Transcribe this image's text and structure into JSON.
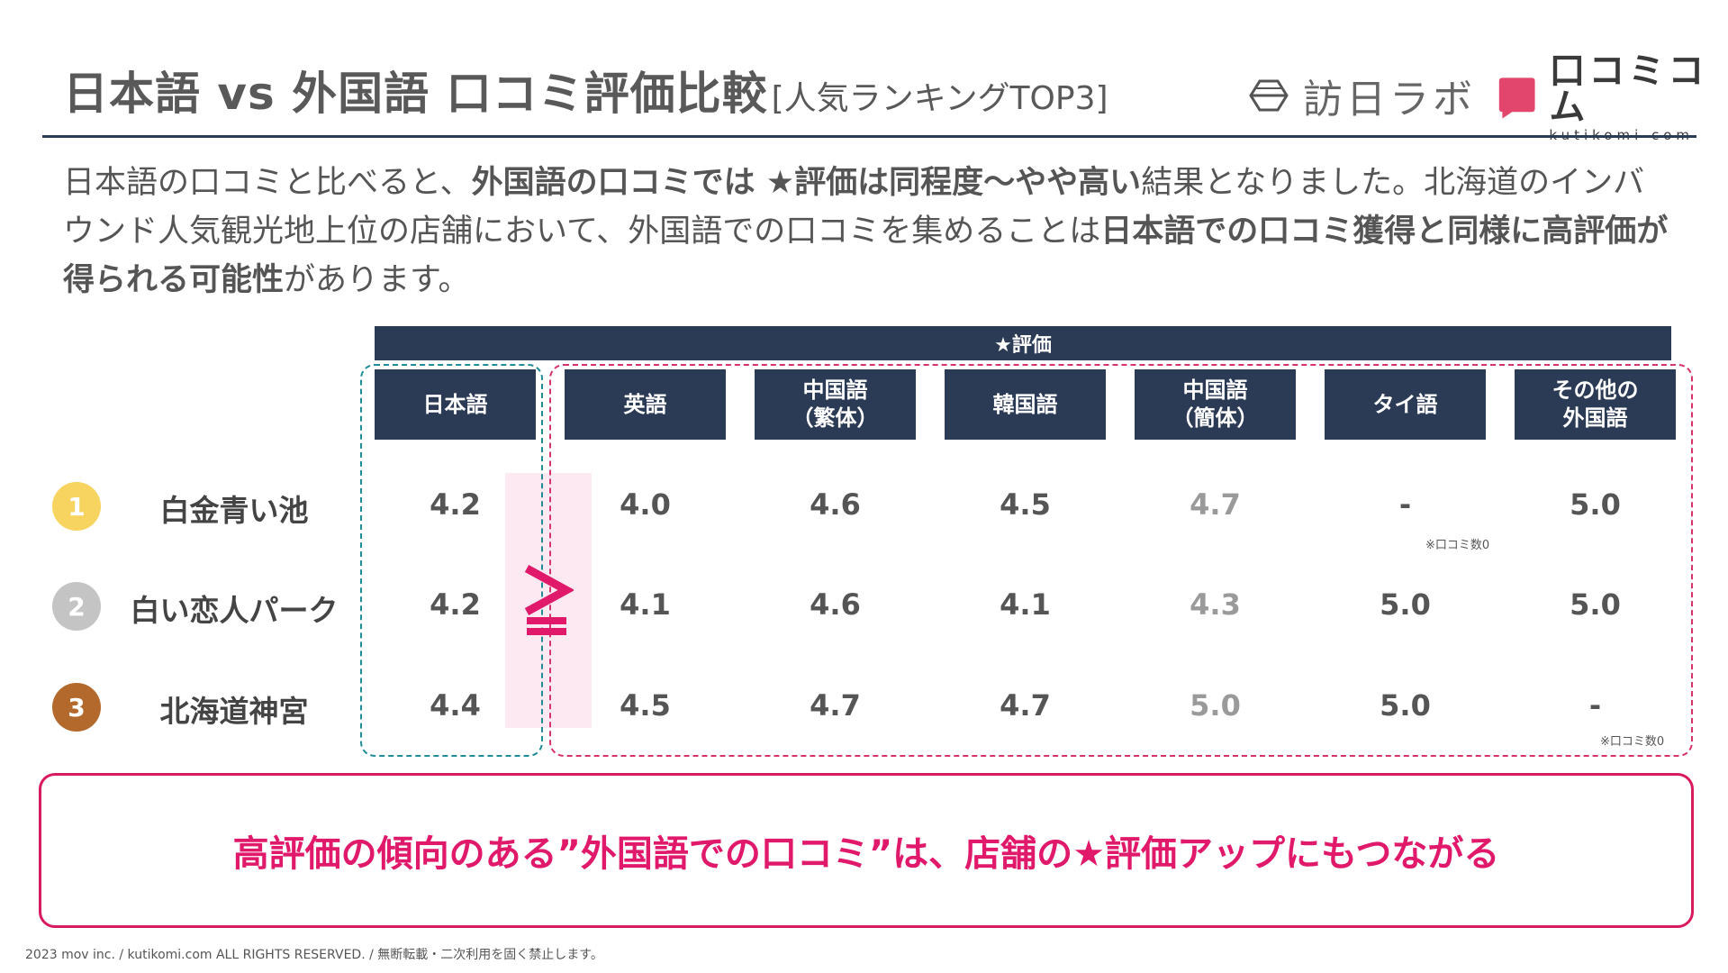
{
  "header": {
    "title": "日本語 vs 外国語 口コミ評価比較",
    "subtitle": "[人気ランキングTOP3]",
    "logo_honichi": "訪日ラボ",
    "logo_kutikomi": "口コミコム",
    "logo_kutikomi_sub": "kutikomi com",
    "brand_color": "#e3466c",
    "rule_color": "#2b3a55"
  },
  "intro": {
    "p1": "日本語の口コミと比べると、",
    "b1": "外国語の口コミでは ★評価は同程度〜やや高い",
    "p2": "結果となりました。北海道のインバウンド人気観光地上位の店舗において、外国語での口コミを集めることは",
    "b2": "日本語での口コミ獲得と同様に高評価が得られる可能性",
    "p3": "があります。"
  },
  "table": {
    "group_header": "★評価",
    "columns": [
      "日本語",
      "英語",
      "中国語\n（繁体）",
      "韓国語",
      "中国語\n（簡体）",
      "タイ語",
      "その他の\n外国語"
    ],
    "comparison_sign": "≦",
    "rows": [
      {
        "rank": "1",
        "rank_color": "#f7d35f",
        "name": "白金青い池",
        "values": [
          "4.2",
          "4.0",
          "4.6",
          "4.5",
          "4.7",
          "-",
          "5.0"
        ],
        "note_tai": "※口コミ数0"
      },
      {
        "rank": "2",
        "rank_color": "#c4c4c4",
        "name": "白い恋人パーク",
        "values": [
          "4.2",
          "4.1",
          "4.6",
          "4.1",
          "4.3",
          "5.0",
          "5.0"
        ]
      },
      {
        "rank": "3",
        "rank_color": "#b4692c",
        "name": "北海道神宮",
        "values": [
          "4.4",
          "4.5",
          "4.7",
          "4.7",
          "5.0",
          "5.0",
          "-"
        ],
        "note_other": "※口コミ数0"
      }
    ],
    "colors": {
      "japanese_box": "#1f8c96",
      "foreign_box": "#d6336c",
      "header_bg": "#2b3a55"
    }
  },
  "conclusion": "高評価の傾向のある”外国語での口コミ”は、店舗の★評価アップにもつながる",
  "footer": "2023 mov inc. / kutikomi.com ALL RIGHTS RESERVED. / 無断転載・二次利用を固く禁止します。"
}
